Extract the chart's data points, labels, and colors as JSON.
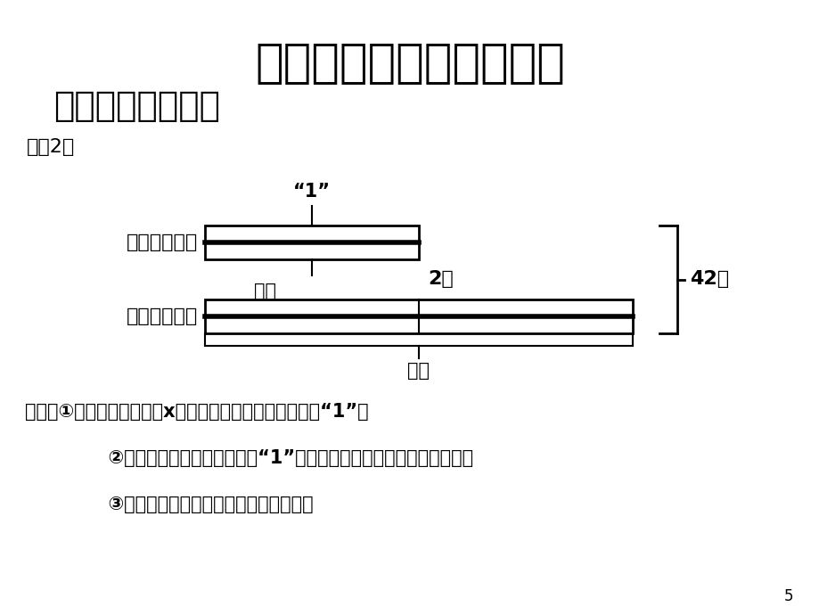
{
  "title": "二、引入情境，探究新知",
  "subtitle": "（二）分析与解答",
  "preset_label": "预设2：",
  "label_top_bar": "下半场得分：",
  "label_bottom_bar": "上半场得分：",
  "quote_one": "“1”",
  "question_mark_top": "？分",
  "times_label": "2倍",
  "total_label": "42分",
  "question_mark_bottom": "？分",
  "q_line1": "问题：①如果设下半场得了x分，那么我们把谁看作是单位“1”？",
  "q_line2": "      ②如果把下半场得分看作单位“1”，那么上半场得分是下半场的几倍？",
  "q_line3": "      ③应该怎样设未知数？说说你列的方程。",
  "bg_color": "#ffffff",
  "text_color": "#000000",
  "bar_color": "#000000",
  "bar_fill": "#ffffff"
}
